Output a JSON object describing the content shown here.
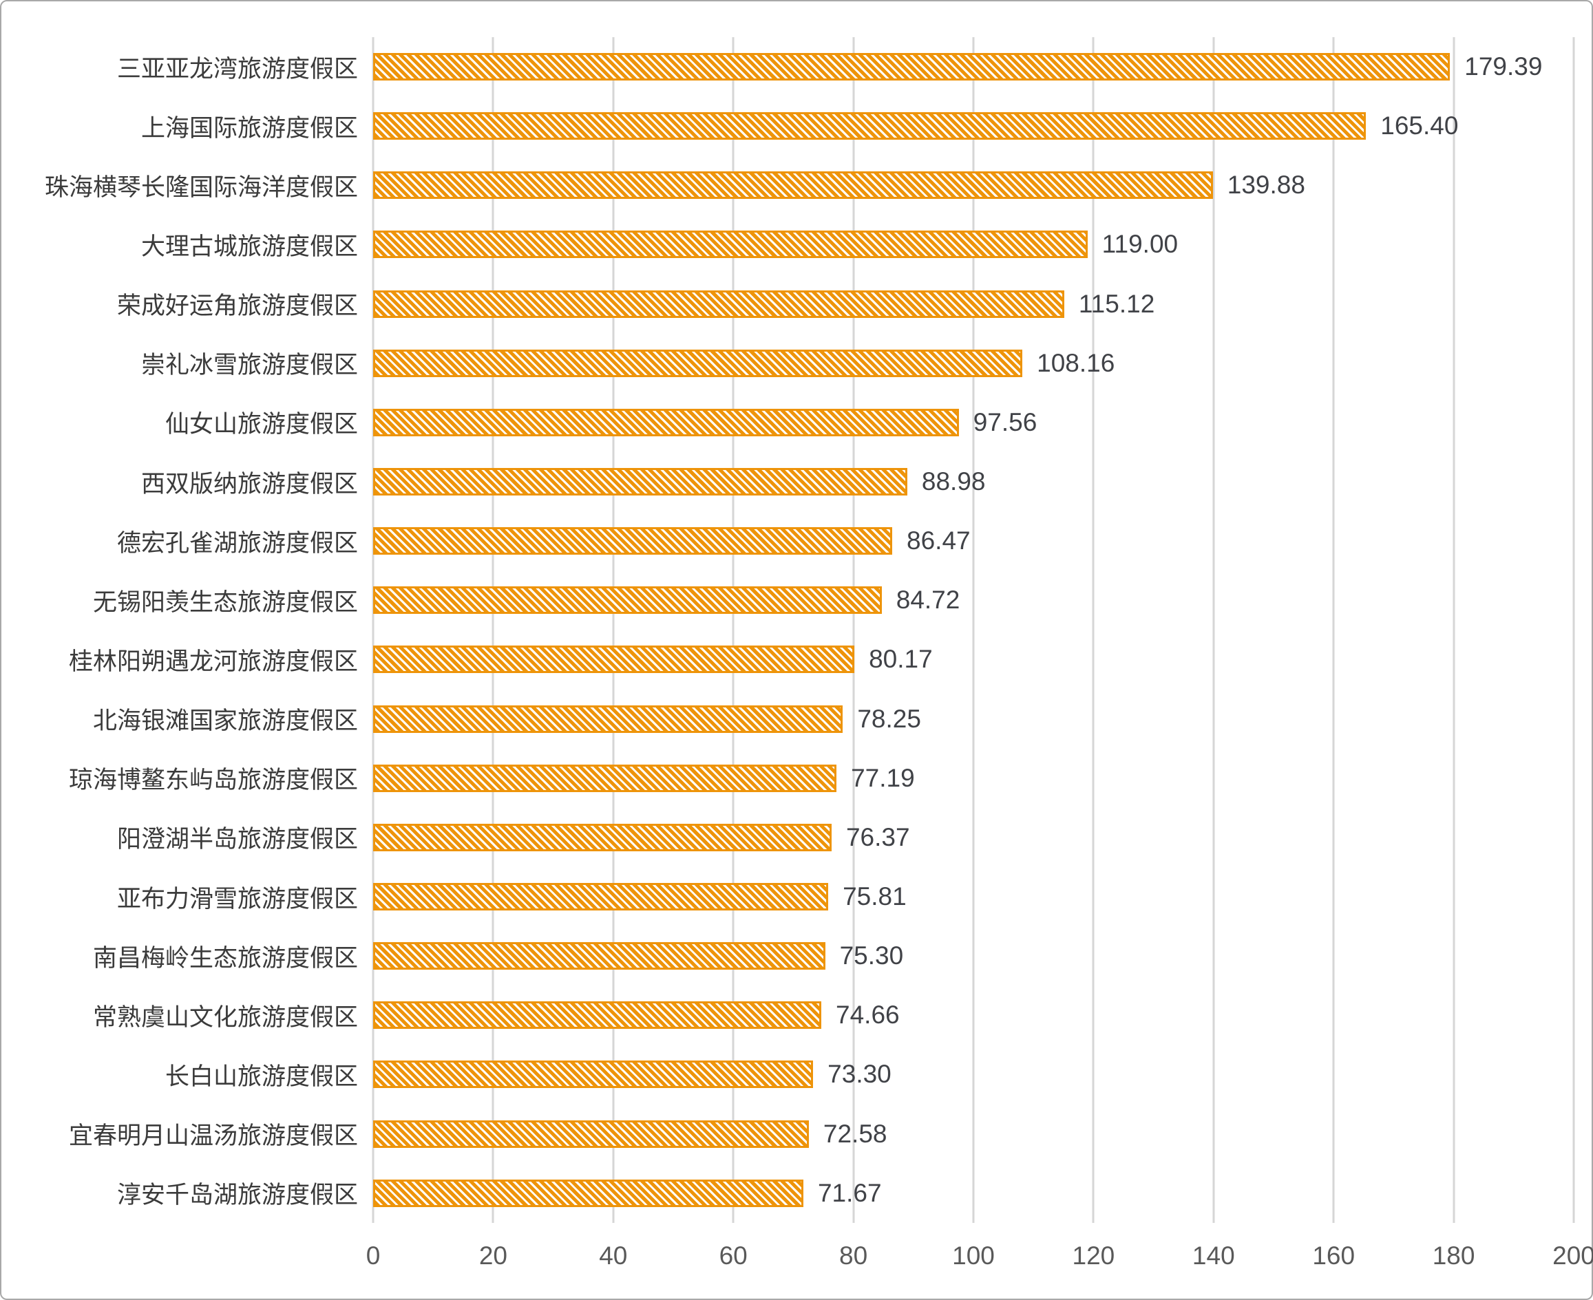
{
  "chart_data": {
    "type": "bar",
    "orientation": "horizontal",
    "title": "",
    "xlabel": "",
    "ylabel": "",
    "categories": [
      "三亚亚龙湾旅游度假区",
      "上海国际旅游度假区",
      "珠海横琴长隆国际海洋度假区",
      "大理古城旅游度假区",
      "荣成好运角旅游度假区",
      "崇礼冰雪旅游度假区",
      "仙女山旅游度假区",
      "西双版纳旅游度假区",
      "德宏孔雀湖旅游度假区",
      "无锡阳羡生态旅游度假区",
      "桂林阳朔遇龙河旅游度假区",
      "北海银滩国家旅游度假区",
      "琼海博鳌东屿岛旅游度假区",
      "阳澄湖半岛旅游度假区",
      "亚布力滑雪旅游度假区",
      "南昌梅岭生态旅游度假区",
      "常熟虞山文化旅游度假区",
      "长白山旅游度假区",
      "宜春明月山温汤旅游度假区",
      "淳安千岛湖旅游度假区"
    ],
    "values": [
      179.39,
      165.4,
      139.88,
      119.0,
      115.12,
      108.16,
      97.56,
      88.98,
      86.47,
      84.72,
      80.17,
      78.25,
      77.19,
      76.37,
      75.81,
      75.3,
      74.66,
      73.3,
      72.58,
      71.67
    ],
    "value_label_decimals": 2,
    "xlim": [
      0,
      200
    ],
    "x_ticks": [
      0,
      20,
      40,
      60,
      80,
      100,
      120,
      140,
      160,
      180,
      200
    ],
    "grid": true,
    "legend": false,
    "bar_fill_pattern": "white-diagonal-hatch-on-orange"
  },
  "colors": {
    "bar": "#ee940a",
    "grid": "#d6d6d6",
    "category_label": "#3b3b3b",
    "value_label": "#404247",
    "tick_label": "#595959",
    "frame_border": "#a8a8a8",
    "background": "#ffffff"
  }
}
